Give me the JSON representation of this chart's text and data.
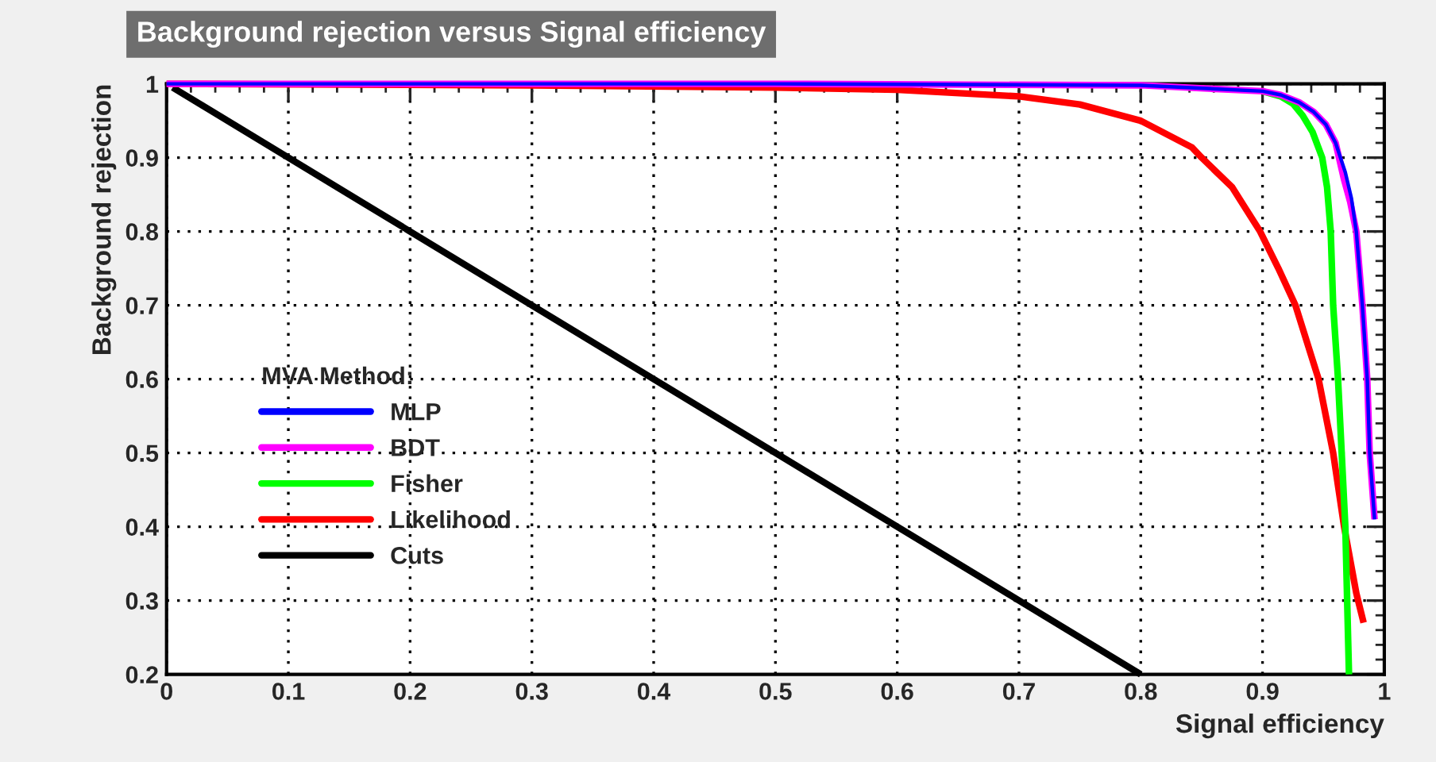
{
  "chart_data": {
    "type": "line",
    "title": "Background rejection versus Signal efficiency",
    "xlabel": "Signal efficiency",
    "ylabel": "Background rejection",
    "legend_title": "MVA Method:",
    "legend": "left",
    "grid": true,
    "line_style": "solid",
    "marker": "none",
    "xlim": [
      0,
      1
    ],
    "ylim": [
      0.2,
      1
    ],
    "xticks": [
      0,
      0.1,
      0.2,
      0.3,
      0.4,
      0.5,
      0.6,
      0.7,
      0.8,
      0.9,
      1
    ],
    "yticks": [
      0.2,
      0.3,
      0.4,
      0.5,
      0.6,
      0.7,
      0.8,
      0.9,
      1
    ],
    "series": [
      {
        "name": "MLP",
        "color": "#0000ff",
        "x": [
          0.0,
          0.5,
          0.8,
          0.9,
          0.915,
          0.93,
          0.942,
          0.952,
          0.96,
          0.968,
          0.973,
          0.977,
          0.982,
          0.986,
          0.988,
          0.992
        ],
        "values": [
          1.0,
          1.0,
          0.998,
          0.99,
          0.985,
          0.975,
          0.962,
          0.945,
          0.92,
          0.88,
          0.845,
          0.8,
          0.7,
          0.6,
          0.5,
          0.41
        ]
      },
      {
        "name": "BDT",
        "color": "#ff00ff",
        "x": [
          0.0,
          0.5,
          0.8,
          0.9,
          0.915,
          0.93,
          0.942,
          0.952,
          0.96,
          0.967,
          0.972,
          0.977,
          0.982,
          0.986,
          0.988,
          0.992
        ],
        "values": [
          1.0,
          1.0,
          0.998,
          0.99,
          0.985,
          0.975,
          0.962,
          0.945,
          0.92,
          0.87,
          0.84,
          0.8,
          0.7,
          0.6,
          0.5,
          0.41
        ]
      },
      {
        "name": "Fisher",
        "color": "#00ff00",
        "x": [
          0.9,
          0.915,
          0.925,
          0.933,
          0.941,
          0.949,
          0.953,
          0.956,
          0.958,
          0.962,
          0.965,
          0.968,
          0.971
        ],
        "values": [
          0.99,
          0.983,
          0.973,
          0.957,
          0.935,
          0.9,
          0.86,
          0.8,
          0.7,
          0.6,
          0.5,
          0.4,
          0.2
        ]
      },
      {
        "name": "Likelihood",
        "color": "#ff0000",
        "x": [
          0.0,
          0.3,
          0.5,
          0.6,
          0.7,
          0.75,
          0.8,
          0.842,
          0.85,
          0.875,
          0.898,
          0.913,
          0.927,
          0.946,
          0.958,
          0.967,
          0.977,
          0.983
        ],
        "values": [
          1.0,
          0.998,
          0.995,
          0.992,
          0.983,
          0.972,
          0.95,
          0.914,
          0.9,
          0.86,
          0.8,
          0.75,
          0.7,
          0.6,
          0.5,
          0.4,
          0.31,
          0.27
        ]
      },
      {
        "name": "Cuts",
        "color": "#000000",
        "x": [
          0.005,
          0.8
        ],
        "values": [
          0.995,
          0.2
        ]
      }
    ]
  }
}
